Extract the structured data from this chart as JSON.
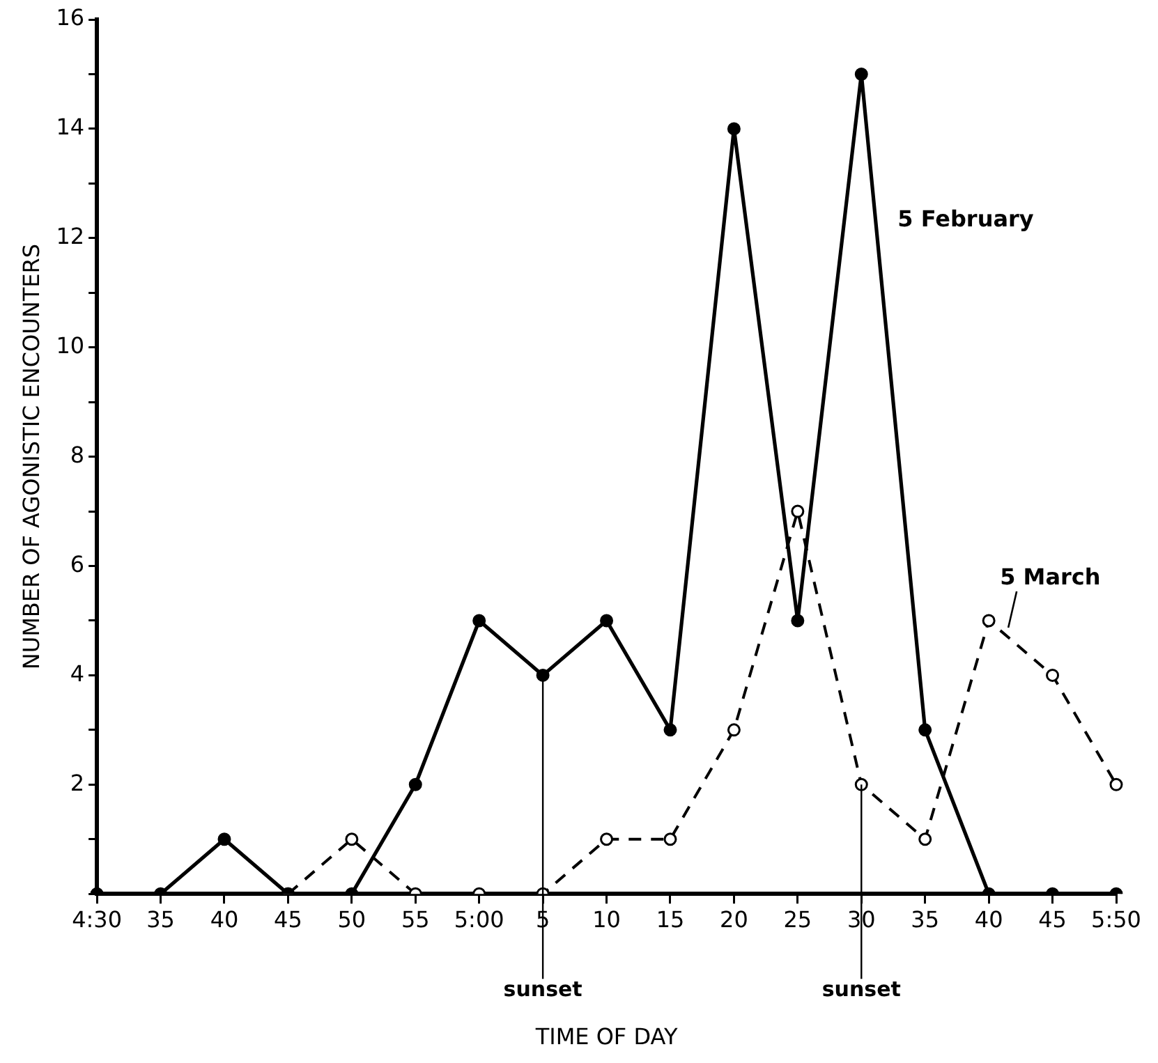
{
  "chart_data": {
    "type": "line",
    "xlabel": "TIME OF DAY",
    "ylabel": "NUMBER OF AGONISTIC ENCOUNTERS",
    "categories": [
      "4:30",
      "35",
      "40",
      "45",
      "50",
      "55",
      "5:00",
      "5",
      "10",
      "15",
      "20",
      "25",
      "30",
      "35",
      "40",
      "45",
      "5:50"
    ],
    "series": [
      {
        "name": "5 February",
        "color": "#000000",
        "line_style": "solid",
        "marker": "circle",
        "values": [
          0,
          0,
          1,
          0,
          0,
          2,
          5,
          4,
          5,
          3,
          14,
          5,
          15,
          3,
          0,
          0,
          0
        ]
      },
      {
        "name": "5 March",
        "color": "#000000",
        "line_style": "dashed",
        "marker": "circle",
        "values": [
          null,
          null,
          null,
          0,
          1,
          0,
          0,
          0,
          1,
          1,
          3,
          7,
          2,
          1,
          5,
          4,
          2
        ]
      }
    ],
    "ylim": [
      0,
      16
    ],
    "yticks": [
      {
        "value": 0,
        "label": null
      },
      {
        "value": 1,
        "label": null
      },
      2,
      {
        "value": 3,
        "label": null
      },
      4,
      {
        "value": 5,
        "label": null
      },
      6,
      {
        "value": 7,
        "label": null
      },
      8,
      {
        "value": 9,
        "label": null
      },
      10,
      {
        "value": 11,
        "label": null
      },
      12,
      {
        "value": 13,
        "label": null
      },
      14,
      {
        "value": 15,
        "label": null
      },
      16
    ],
    "ref_lines": [
      {
        "axis": "x",
        "value": "5",
        "label": "sunset"
      },
      {
        "axis": "x",
        "value": "30",
        "label": "sunset"
      }
    ],
    "grid": false,
    "legend": false
  }
}
